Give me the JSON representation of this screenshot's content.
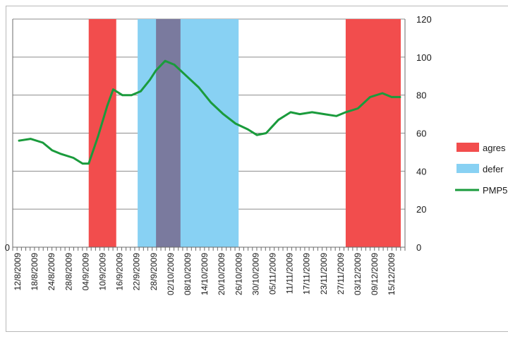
{
  "chart_data": {
    "type": "bar+line",
    "title": "",
    "xlabel": "",
    "ylabel": "",
    "x_tick_labels": [
      "12/8/2009",
      "18/8/2009",
      "24/8/2009",
      "28/8/2009",
      "04/9/2009",
      "10/9/2009",
      "16/9/2009",
      "22/9/2009",
      "28/9/2009",
      "02/10/2009",
      "08/10/2009",
      "14/10/2009",
      "20/10/2009",
      "26/10/2009",
      "30/10/2009",
      "05/11/2009",
      "11/11/2009",
      "17/11/2009",
      "23/11/2009",
      "27/11/2009",
      "03/12/2009",
      "09/12/2009",
      "15/12/2009"
    ],
    "left_axis": {
      "ylim": [
        0,
        100
      ],
      "tick_labels": [
        "0",
        "",
        "",
        "",
        "",
        ""
      ]
    },
    "right_axis": {
      "ylim": [
        0,
        120
      ],
      "ticks": [
        0,
        20,
        40,
        60,
        80,
        100,
        120
      ],
      "tick_labels": [
        "0",
        "20",
        "40",
        "60",
        "80",
        "100",
        "120"
      ]
    },
    "grid": true,
    "legend_position": "right",
    "regimes": [
      {
        "series": "agres",
        "color": "#f24d4d",
        "start": "04/9/2009",
        "end": "13/9/2009",
        "value": 100
      },
      {
        "series": "defer",
        "color": "#88d1f3",
        "start": "20/9/2009",
        "end": "23/10/2009",
        "value": 100
      },
      {
        "series": "overlap",
        "color": "#7a7a9e",
        "start": "26/9/2009",
        "end": "04/10/2009",
        "value": 100
      },
      {
        "series": "agres",
        "color": "#f24d4d",
        "start": "27/11/2009",
        "end": "15/12/2009",
        "value": 100
      }
    ],
    "line_series": {
      "name": "PMP5",
      "color": "#1a9b3c",
      "axis": "right",
      "points": [
        [
          "12/8/2009",
          56
        ],
        [
          "16/8/2009",
          57
        ],
        [
          "20/8/2009",
          55
        ],
        [
          "23/8/2009",
          51
        ],
        [
          "26/8/2009",
          49
        ],
        [
          "30/8/2009",
          47
        ],
        [
          "02/9/2009",
          44
        ],
        [
          "04/9/2009",
          44
        ],
        [
          "07/9/2009",
          58
        ],
        [
          "10/9/2009",
          74
        ],
        [
          "12/9/2009",
          83
        ],
        [
          "15/9/2009",
          80
        ],
        [
          "18/9/2009",
          80
        ],
        [
          "21/9/2009",
          82
        ],
        [
          "24/9/2009",
          88
        ],
        [
          "26/9/2009",
          93
        ],
        [
          "29/9/2009",
          98
        ],
        [
          "02/10/2009",
          96
        ],
        [
          "06/10/2009",
          90
        ],
        [
          "10/10/2009",
          84
        ],
        [
          "14/10/2009",
          76
        ],
        [
          "18/10/2009",
          70
        ],
        [
          "22/10/2009",
          65
        ],
        [
          "26/10/2009",
          62
        ],
        [
          "29/10/2009",
          59
        ],
        [
          "01/11/2009",
          60
        ],
        [
          "05/11/2009",
          67
        ],
        [
          "09/11/2009",
          71
        ],
        [
          "12/11/2009",
          70
        ],
        [
          "16/11/2009",
          71
        ],
        [
          "20/11/2009",
          70
        ],
        [
          "24/11/2009",
          69
        ],
        [
          "27/11/2009",
          71
        ],
        [
          "01/12/2009",
          73
        ],
        [
          "05/12/2009",
          79
        ],
        [
          "09/12/2009",
          81
        ],
        [
          "12/12/2009",
          79
        ],
        [
          "15/12/2009",
          79
        ]
      ]
    },
    "legend": [
      {
        "label": "agres",
        "kind": "box",
        "color": "#f24d4d"
      },
      {
        "label": "defer",
        "kind": "box",
        "color": "#88d1f3"
      },
      {
        "label": "PMP5",
        "kind": "line",
        "color": "#1a9b3c"
      }
    ]
  }
}
